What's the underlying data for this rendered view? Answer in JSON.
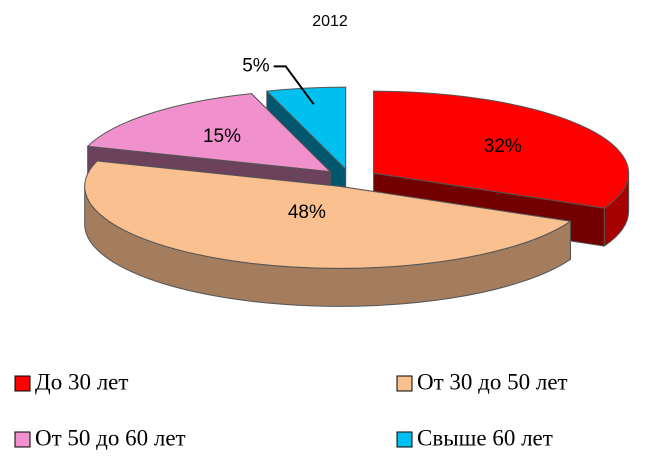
{
  "chart_data": {
    "type": "pie3d",
    "title": "2012",
    "categories": [
      "До 30 лет",
      "От 30 до 50 лет",
      "От 50 до 60 лет",
      "Свыше 60 лет"
    ],
    "values": [
      32,
      48,
      15,
      5
    ],
    "value_labels": [
      "32%",
      "48%",
      "15%",
      "5%"
    ],
    "colors": [
      "#ff0000",
      "#fac090",
      "#f090cc",
      "#00c0f0"
    ],
    "legend": "bottom"
  }
}
